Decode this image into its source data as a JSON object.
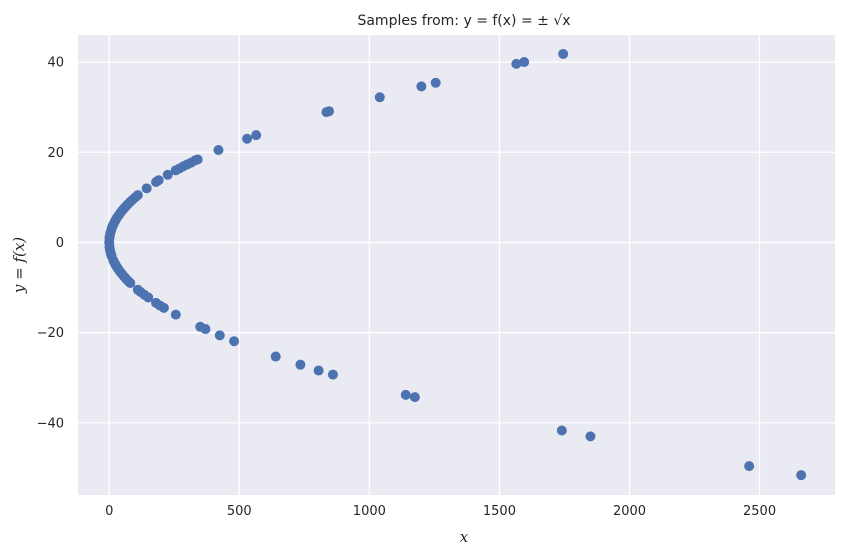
{
  "chart_data": {
    "type": "scatter",
    "title": "Samples from: y = f(x) = ± √x",
    "xlabel": "x",
    "ylabel": "y = f(x)",
    "xlim": [
      -120,
      2790
    ],
    "ylim": [
      -56,
      46
    ],
    "x_ticks": [
      0,
      500,
      1000,
      1500,
      2000,
      2500
    ],
    "y_ticks": [
      -40,
      -20,
      0,
      20,
      40
    ],
    "x_tick_labels": [
      "0",
      "500",
      "1000",
      "1500",
      "2000",
      "2500"
    ],
    "y_tick_labels": [
      "−40",
      "−20",
      "0",
      "20",
      "40"
    ],
    "grid": true,
    "background": "#eaeaf2",
    "grid_color": "#ffffff",
    "marker_color": "#4c72b0",
    "series": [
      {
        "points": [
          [
            0,
            0
          ],
          [
            1,
            1
          ],
          [
            2,
            1.4
          ],
          [
            4,
            2
          ],
          [
            6,
            2.4
          ],
          [
            9,
            3
          ],
          [
            12,
            3.5
          ],
          [
            16,
            4
          ],
          [
            20,
            4.5
          ],
          [
            25,
            5
          ],
          [
            30,
            5.5
          ],
          [
            36,
            6
          ],
          [
            42,
            6.5
          ],
          [
            49,
            7
          ],
          [
            56,
            7.5
          ],
          [
            64,
            8
          ],
          [
            72,
            8.5
          ],
          [
            81,
            9
          ],
          [
            90,
            9.5
          ],
          [
            100,
            10
          ],
          [
            110,
            10.5
          ],
          [
            144,
            12
          ],
          [
            180,
            13.4
          ],
          [
            190,
            13.8
          ],
          [
            225,
            15
          ],
          [
            256,
            16
          ],
          [
            270,
            16.4
          ],
          [
            285,
            16.9
          ],
          [
            300,
            17.3
          ],
          [
            315,
            17.7
          ],
          [
            330,
            18.2
          ],
          [
            340,
            18.4
          ],
          [
            420,
            20.5
          ],
          [
            530,
            23
          ],
          [
            565,
            23.8
          ],
          [
            835,
            28.9
          ],
          [
            845,
            29.1
          ],
          [
            1040,
            32.2
          ],
          [
            1200,
            34.6
          ],
          [
            1255,
            35.4
          ],
          [
            1565,
            39.6
          ],
          [
            1595,
            40
          ],
          [
            1745,
            41.8
          ],
          [
            1,
            -1
          ],
          [
            3,
            -1.7
          ],
          [
            6,
            -2.4
          ],
          [
            9,
            -3
          ],
          [
            16,
            -4
          ],
          [
            20,
            -4.5
          ],
          [
            25,
            -5
          ],
          [
            30,
            -5.5
          ],
          [
            36,
            -6
          ],
          [
            42,
            -6.5
          ],
          [
            49,
            -7
          ],
          [
            56,
            -7.5
          ],
          [
            64,
            -8
          ],
          [
            72,
            -8.5
          ],
          [
            81,
            -9
          ],
          [
            110,
            -10.5
          ],
          [
            121,
            -11
          ],
          [
            135,
            -11.6
          ],
          [
            150,
            -12.2
          ],
          [
            180,
            -13.4
          ],
          [
            195,
            -14
          ],
          [
            210,
            -14.5
          ],
          [
            256,
            -16
          ],
          [
            350,
            -18.7
          ],
          [
            370,
            -19.2
          ],
          [
            425,
            -20.6
          ],
          [
            480,
            -21.9
          ],
          [
            640,
            -25.3
          ],
          [
            735,
            -27.1
          ],
          [
            805,
            -28.4
          ],
          [
            860,
            -29.3
          ],
          [
            1140,
            -33.8
          ],
          [
            1175,
            -34.3
          ],
          [
            1740,
            -41.7
          ],
          [
            1850,
            -43
          ],
          [
            2460,
            -49.6
          ],
          [
            2660,
            -51.6
          ]
        ]
      }
    ]
  }
}
